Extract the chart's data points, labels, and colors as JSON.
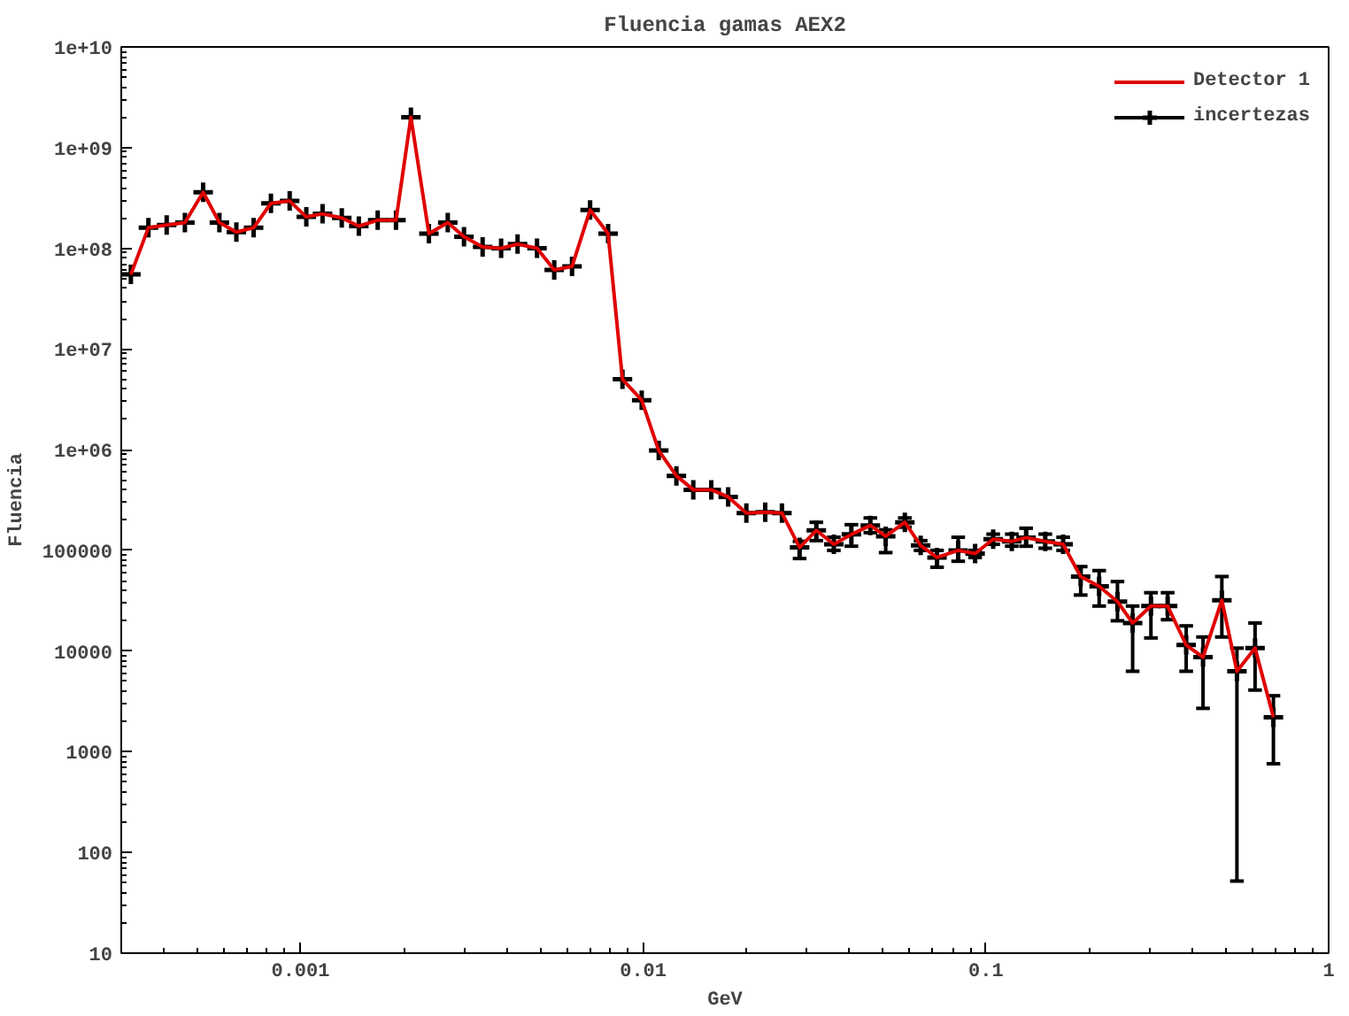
{
  "chart_data": {
    "type": "line",
    "title": "Fluencia gamas AEX2",
    "xlabel": "GeV",
    "ylabel": "Fluencia",
    "log": "xy",
    "grid": false,
    "legend": "top right",
    "xlim": [
      0.0003,
      1
    ],
    "ylim": [
      10,
      10000000000
    ],
    "xticks": [
      0.001,
      0.01,
      0.1,
      1
    ],
    "yticks": [
      10,
      100,
      1000,
      10000,
      100000,
      {
        "value": 1000000,
        "label": "1e+06"
      },
      {
        "value": 10000000,
        "label": "1e+07"
      },
      {
        "value": 100000000,
        "label": "1e+08"
      },
      {
        "value": 1000000000,
        "label": "1e+09"
      },
      {
        "value": 10000000000,
        "label": "1e+10"
      }
    ],
    "x": [
      0.00032,
      0.00036,
      0.000407,
      0.00046,
      0.00052,
      0.00058,
      0.00065,
      0.00073,
      0.00082,
      0.00093,
      0.00104,
      0.00116,
      0.00132,
      0.00148,
      0.00168,
      0.0019,
      0.0021,
      0.00237,
      0.00269,
      0.003,
      0.0034,
      0.00385,
      0.0043,
      0.0049,
      0.0055,
      0.0062,
      0.007,
      0.0079,
      0.0087,
      0.0099,
      0.0111,
      0.0125,
      0.014,
      0.0158,
      0.0177,
      0.02,
      0.0227,
      0.0254,
      0.0286,
      0.032,
      0.036,
      0.0405,
      0.046,
      0.051,
      0.058,
      0.0645,
      0.072,
      0.083,
      0.093,
      0.105,
      0.119,
      0.131,
      0.149,
      0.168,
      0.189,
      0.214,
      0.242,
      0.268,
      0.303,
      0.339,
      0.384,
      0.43,
      0.488,
      0.54,
      0.61,
      0.69
    ],
    "series": [
      {
        "name": "Detector 1",
        "color": "#e00000",
        "marker": "none",
        "line_style": "solid",
        "values": [
          55000000,
          160000000,
          170000000,
          180000000,
          360000000,
          180000000,
          145000000,
          160000000,
          280000000,
          295000000,
          205000000,
          220000000,
          200000000,
          166000000,
          190000000,
          190000000,
          2000000000,
          140000000,
          180000000,
          130000000,
          103000000,
          100000000,
          110000000,
          100000000,
          61000000,
          66000000,
          240000000,
          140000000,
          5000000,
          3100000,
          980000,
          550000,
          400000,
          400000,
          340000,
          235000,
          240000,
          235000,
          107000,
          158000,
          115000,
          144000,
          177000,
          138000,
          190000,
          112000,
          85000,
          100000,
          93000,
          129000,
          123000,
          134000,
          123000,
          115000,
          55000,
          44000,
          31000,
          19000,
          28000,
          28000,
          11500,
          8700,
          32000,
          6300,
          10700,
          2200
        ]
      },
      {
        "name": "incertezas",
        "type": "scatter",
        "color": "#000000",
        "marker": "cross",
        "values": [
          55000000,
          160000000,
          170000000,
          180000000,
          360000000,
          180000000,
          145000000,
          160000000,
          280000000,
          295000000,
          205000000,
          220000000,
          200000000,
          166000000,
          190000000,
          190000000,
          2000000000,
          140000000,
          180000000,
          130000000,
          103000000,
          100000000,
          110000000,
          100000000,
          61000000,
          66000000,
          240000000,
          140000000,
          5000000,
          3100000,
          980000,
          550000,
          400000,
          400000,
          340000,
          235000,
          240000,
          235000,
          107000,
          158000,
          115000,
          144000,
          177000,
          138000,
          190000,
          112000,
          85000,
          100000,
          93000,
          129000,
          123000,
          134000,
          123000,
          115000,
          55000,
          44000,
          31000,
          19000,
          28000,
          28000,
          11500,
          8700,
          32000,
          6300,
          10700,
          2200
        ],
        "errors": [
          null,
          null,
          null,
          null,
          null,
          null,
          null,
          null,
          null,
          null,
          null,
          null,
          null,
          null,
          null,
          null,
          null,
          null,
          null,
          null,
          null,
          null,
          null,
          null,
          null,
          null,
          null,
          null,
          null,
          null,
          null,
          null,
          null,
          null,
          null,
          null,
          null,
          null,
          [
            83000,
            123000
          ],
          [
            125000,
            190000
          ],
          [
            100000,
            135000
          ],
          [
            110000,
            180000
          ],
          [
            150000,
            210000
          ],
          [
            95000,
            160000
          ],
          [
            170000,
            210000
          ],
          [
            100000,
            125000
          ],
          [
            68000,
            100000
          ],
          [
            78000,
            135000
          ],
          [
            85000,
            100000
          ],
          [
            115000,
            145000
          ],
          [
            110000,
            145000
          ],
          [
            110000,
            166000
          ],
          [
            105000,
            145000
          ],
          [
            100000,
            135000
          ],
          [
            36000,
            69000
          ],
          [
            28000,
            63000
          ],
          [
            20000,
            49000
          ],
          [
            6300,
            28000
          ],
          [
            13500,
            38000
          ],
          [
            20500,
            38000
          ],
          [
            6300,
            17800
          ],
          [
            2700,
            13800
          ],
          [
            13800,
            55000
          ],
          [
            52,
            10700
          ],
          [
            4100,
            19000
          ],
          [
            760,
            3600
          ]
        ]
      }
    ]
  }
}
